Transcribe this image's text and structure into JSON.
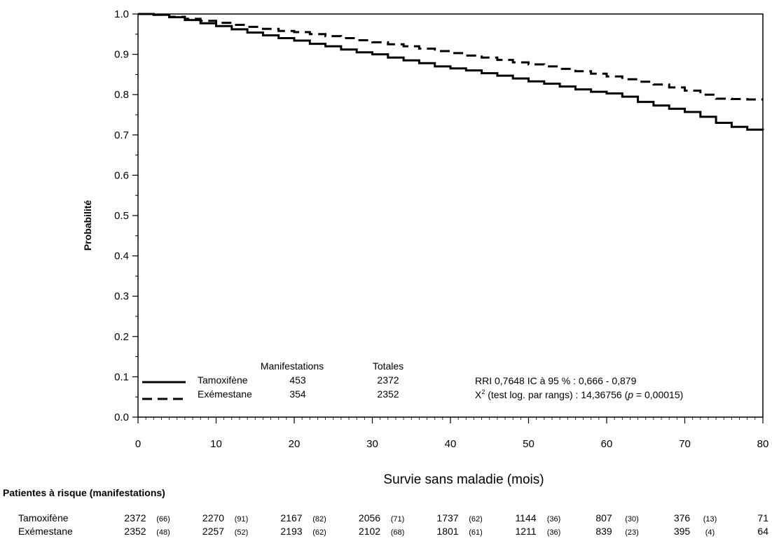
{
  "chart_data": {
    "type": "line",
    "xlabel": "Survie sans maladie (mois)",
    "ylabel": "Probabilité",
    "xlim": [
      0,
      80
    ],
    "ylim": [
      0.0,
      1.0
    ],
    "x_ticks": [
      0,
      10,
      20,
      30,
      40,
      50,
      60,
      70,
      80
    ],
    "y_ticks": [
      0.0,
      0.1,
      0.2,
      0.3,
      0.4,
      0.5,
      0.6,
      0.7,
      0.8,
      0.9,
      1.0
    ],
    "y_tick_labels": [
      "0.0",
      "0.1",
      "0.2",
      "0.3",
      "0.4",
      "0.5",
      "0.6",
      "0.7",
      "0.8",
      "0.9",
      "1.0"
    ],
    "grid": false,
    "series": [
      {
        "name": "Tamoxifène",
        "style": "solid",
        "color": "#000000",
        "points": [
          [
            0,
            1.0
          ],
          [
            2,
            0.998
          ],
          [
            4,
            0.992
          ],
          [
            6,
            0.985
          ],
          [
            8,
            0.977
          ],
          [
            10,
            0.97
          ],
          [
            12,
            0.962
          ],
          [
            14,
            0.954
          ],
          [
            16,
            0.947
          ],
          [
            18,
            0.94
          ],
          [
            20,
            0.934
          ],
          [
            22,
            0.926
          ],
          [
            24,
            0.92
          ],
          [
            26,
            0.912
          ],
          [
            28,
            0.905
          ],
          [
            30,
            0.9
          ],
          [
            32,
            0.892
          ],
          [
            34,
            0.885
          ],
          [
            36,
            0.878
          ],
          [
            38,
            0.87
          ],
          [
            40,
            0.865
          ],
          [
            42,
            0.86
          ],
          [
            44,
            0.853
          ],
          [
            46,
            0.847
          ],
          [
            48,
            0.84
          ],
          [
            50,
            0.833
          ],
          [
            52,
            0.827
          ],
          [
            54,
            0.82
          ],
          [
            56,
            0.813
          ],
          [
            58,
            0.807
          ],
          [
            60,
            0.803
          ],
          [
            62,
            0.795
          ],
          [
            64,
            0.782
          ],
          [
            66,
            0.773
          ],
          [
            68,
            0.765
          ],
          [
            70,
            0.757
          ],
          [
            72,
            0.745
          ],
          [
            74,
            0.73
          ],
          [
            76,
            0.72
          ],
          [
            78,
            0.713
          ],
          [
            80,
            0.712
          ]
        ]
      },
      {
        "name": "Exémestane",
        "style": "dashed",
        "color": "#000000",
        "points": [
          [
            0,
            1.0
          ],
          [
            2,
            0.998
          ],
          [
            4,
            0.993
          ],
          [
            6,
            0.988
          ],
          [
            8,
            0.983
          ],
          [
            10,
            0.978
          ],
          [
            12,
            0.973
          ],
          [
            14,
            0.968
          ],
          [
            16,
            0.963
          ],
          [
            18,
            0.958
          ],
          [
            20,
            0.955
          ],
          [
            22,
            0.95
          ],
          [
            24,
            0.945
          ],
          [
            26,
            0.94
          ],
          [
            28,
            0.935
          ],
          [
            30,
            0.93
          ],
          [
            32,
            0.925
          ],
          [
            34,
            0.92
          ],
          [
            36,
            0.914
          ],
          [
            38,
            0.908
          ],
          [
            40,
            0.903
          ],
          [
            42,
            0.897
          ],
          [
            44,
            0.892
          ],
          [
            46,
            0.886
          ],
          [
            48,
            0.88
          ],
          [
            50,
            0.875
          ],
          [
            52,
            0.87
          ],
          [
            54,
            0.864
          ],
          [
            56,
            0.858
          ],
          [
            58,
            0.852
          ],
          [
            60,
            0.845
          ],
          [
            62,
            0.838
          ],
          [
            64,
            0.832
          ],
          [
            66,
            0.825
          ],
          [
            68,
            0.818
          ],
          [
            70,
            0.81
          ],
          [
            72,
            0.8
          ],
          [
            74,
            0.79
          ],
          [
            76,
            0.789
          ],
          [
            78,
            0.788
          ],
          [
            80,
            0.788
          ]
        ]
      }
    ],
    "legend": {
      "header_events": "Manifestations",
      "header_total": "Totales",
      "rows": [
        {
          "name": "Tamoxifène",
          "events": "453",
          "total": "2372"
        },
        {
          "name": "Exémestane",
          "events": "354",
          "total": "2352"
        }
      ]
    },
    "annotations": {
      "hr_prefix": "RRI 0,7648    IC à 95 % : 0,666 - 0,879",
      "chi_x": "X",
      "chi_sup": "2",
      "chi_text": " (test log. par rangs) : 14,36756  (",
      "chi_p_italic": "p",
      "chi_end": " = 0,00015)"
    },
    "risk_table": {
      "title": "Patientes à risque (manifestations)",
      "rows": [
        {
          "name": "Tamoxifène",
          "counts": [
            "2372",
            "2270",
            "2167",
            "2056",
            "1737",
            "1144",
            "807",
            "376",
            "71"
          ],
          "events": [
            "(66)",
            "(91)",
            "(82)",
            "(71)",
            "(62)",
            "(36)",
            "(30)",
            "(13)"
          ]
        },
        {
          "name": "Exémestane",
          "counts": [
            "2352",
            "2257",
            "2193",
            "2102",
            "1801",
            "1211",
            "839",
            "395",
            "64"
          ],
          "events": [
            "(48)",
            "(52)",
            "(62)",
            "(68)",
            "(61)",
            "(36)",
            "(23)",
            "(4)"
          ]
        }
      ]
    }
  }
}
